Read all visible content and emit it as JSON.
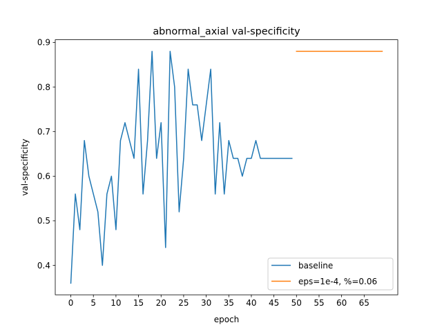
{
  "chart_data": {
    "type": "line",
    "title": "abnormal_axial val-specificity",
    "xlabel": "epoch",
    "ylabel": "val-specificity",
    "xlim": [
      -3.45,
      72.45
    ],
    "ylim": [
      0.334,
      0.906
    ],
    "xticks": [
      0,
      5,
      10,
      15,
      20,
      25,
      30,
      35,
      40,
      45,
      50,
      55,
      60,
      65
    ],
    "yticks": [
      0.4,
      0.5,
      0.6,
      0.7,
      0.8,
      0.9
    ],
    "ytick_labels": [
      "0.4",
      "0.5",
      "0.6",
      "0.7",
      "0.8",
      "0.9"
    ],
    "grid": false,
    "legend_position": "lower right",
    "series": [
      {
        "name": "baseline",
        "color": "#1f77b4",
        "x": [
          0,
          1,
          2,
          3,
          4,
          5,
          6,
          7,
          8,
          9,
          10,
          11,
          12,
          13,
          14,
          15,
          16,
          17,
          18,
          19,
          20,
          21,
          22,
          23,
          24,
          25,
          26,
          27,
          28,
          29,
          30,
          31,
          32,
          33,
          34,
          35,
          36,
          37,
          38,
          39,
          40,
          41,
          42,
          43,
          44,
          45,
          46,
          47,
          48,
          49
        ],
        "y": [
          0.36,
          0.56,
          0.48,
          0.68,
          0.6,
          0.56,
          0.52,
          0.4,
          0.56,
          0.6,
          0.48,
          0.68,
          0.72,
          0.68,
          0.64,
          0.84,
          0.56,
          0.68,
          0.88,
          0.64,
          0.72,
          0.44,
          0.88,
          0.8,
          0.52,
          0.64,
          0.84,
          0.76,
          0.76,
          0.68,
          0.76,
          0.84,
          0.56,
          0.72,
          0.56,
          0.68,
          0.64,
          0.64,
          0.6,
          0.64,
          0.64,
          0.68,
          0.64,
          0.64,
          0.64,
          0.64,
          0.64,
          0.64,
          0.64,
          0.64
        ]
      },
      {
        "name": "eps=1e-4, %=0.06",
        "color": "#ff7f0e",
        "x": [
          50,
          69
        ],
        "y": [
          0.88,
          0.88
        ]
      }
    ]
  }
}
